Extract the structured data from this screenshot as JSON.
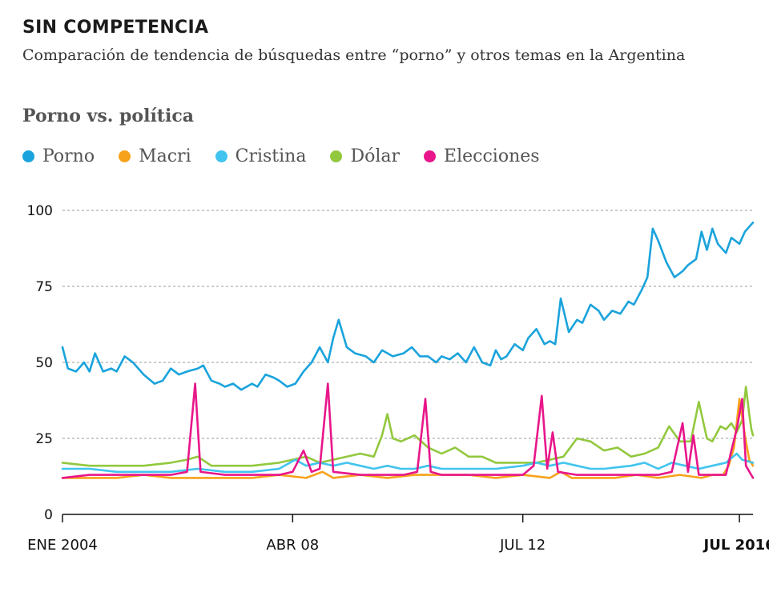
{
  "header": {
    "title": "SIN COMPETENCIA",
    "subtitle": "Comparación de tendencia de búsquedas entre “porno” y otros temas en la Argentina"
  },
  "chart_data": {
    "type": "line",
    "title": "Porno vs. política",
    "ylim": [
      0,
      100
    ],
    "yticks": [
      "0",
      "25",
      "50",
      "75",
      "100"
    ],
    "xtick_labels": [
      {
        "label": "ENE 2004",
        "x": 2004.0,
        "bold": false
      },
      {
        "label": "ABR 08",
        "x": 2008.25,
        "bold": false
      },
      {
        "label": "JUL 12",
        "x": 2012.5,
        "bold": false
      },
      {
        "label": "JUL 2016",
        "x": 2016.5,
        "bold": true
      }
    ],
    "xlim": [
      2004.0,
      2016.75
    ],
    "grid": "horizontal-dashed",
    "legend_position": "top-left",
    "series": [
      {
        "name": "Porno",
        "color": "#1aa3dc",
        "points": [
          [
            2004.0,
            55
          ],
          [
            2004.1,
            48
          ],
          [
            2004.25,
            47
          ],
          [
            2004.4,
            50
          ],
          [
            2004.5,
            47
          ],
          [
            2004.6,
            53
          ],
          [
            2004.75,
            47
          ],
          [
            2004.9,
            48
          ],
          [
            2005.0,
            47
          ],
          [
            2005.15,
            52
          ],
          [
            2005.3,
            50
          ],
          [
            2005.5,
            46
          ],
          [
            2005.7,
            43
          ],
          [
            2005.85,
            44
          ],
          [
            2006.0,
            48
          ],
          [
            2006.15,
            46
          ],
          [
            2006.3,
            47
          ],
          [
            2006.5,
            48
          ],
          [
            2006.6,
            49
          ],
          [
            2006.75,
            44
          ],
          [
            2006.9,
            43
          ],
          [
            2007.0,
            42
          ],
          [
            2007.15,
            43
          ],
          [
            2007.3,
            41
          ],
          [
            2007.5,
            43
          ],
          [
            2007.6,
            42
          ],
          [
            2007.75,
            46
          ],
          [
            2007.9,
            45
          ],
          [
            2008.0,
            44
          ],
          [
            2008.15,
            42
          ],
          [
            2008.3,
            43
          ],
          [
            2008.45,
            47
          ],
          [
            2008.6,
            50
          ],
          [
            2008.75,
            55
          ],
          [
            2008.9,
            50
          ],
          [
            2009.0,
            58
          ],
          [
            2009.1,
            64
          ],
          [
            2009.25,
            55
          ],
          [
            2009.4,
            53
          ],
          [
            2009.6,
            52
          ],
          [
            2009.75,
            50
          ],
          [
            2009.9,
            54
          ],
          [
            2010.1,
            52
          ],
          [
            2010.3,
            53
          ],
          [
            2010.45,
            55
          ],
          [
            2010.6,
            52
          ],
          [
            2010.75,
            52
          ],
          [
            2010.9,
            50
          ],
          [
            2011.0,
            52
          ],
          [
            2011.15,
            51
          ],
          [
            2011.3,
            53
          ],
          [
            2011.45,
            50
          ],
          [
            2011.6,
            55
          ],
          [
            2011.75,
            50
          ],
          [
            2011.9,
            49
          ],
          [
            2012.0,
            54
          ],
          [
            2012.1,
            51
          ],
          [
            2012.2,
            52
          ],
          [
            2012.35,
            56
          ],
          [
            2012.5,
            54
          ],
          [
            2012.6,
            58
          ],
          [
            2012.75,
            61
          ],
          [
            2012.9,
            56
          ],
          [
            2013.0,
            57
          ],
          [
            2013.1,
            56
          ],
          [
            2013.2,
            71
          ],
          [
            2013.35,
            60
          ],
          [
            2013.5,
            64
          ],
          [
            2013.6,
            63
          ],
          [
            2013.75,
            69
          ],
          [
            2013.9,
            67
          ],
          [
            2014.0,
            64
          ],
          [
            2014.15,
            67
          ],
          [
            2014.3,
            66
          ],
          [
            2014.45,
            70
          ],
          [
            2014.55,
            69
          ],
          [
            2014.7,
            74
          ],
          [
            2014.8,
            78
          ],
          [
            2014.9,
            94
          ],
          [
            2015.0,
            90
          ],
          [
            2015.15,
            83
          ],
          [
            2015.3,
            78
          ],
          [
            2015.45,
            80
          ],
          [
            2015.55,
            82
          ],
          [
            2015.7,
            84
          ],
          [
            2015.8,
            93
          ],
          [
            2015.9,
            87
          ],
          [
            2016.0,
            94
          ],
          [
            2016.1,
            89
          ],
          [
            2016.25,
            86
          ],
          [
            2016.35,
            91
          ],
          [
            2016.5,
            89
          ],
          [
            2016.6,
            93
          ],
          [
            2016.75,
            96
          ]
        ]
      },
      {
        "name": "Macri",
        "color": "#f7a21b",
        "points": [
          [
            2004.0,
            12
          ],
          [
            2004.5,
            12
          ],
          [
            2005.0,
            12
          ],
          [
            2005.5,
            13
          ],
          [
            2006.0,
            12
          ],
          [
            2006.5,
            12
          ],
          [
            2007.0,
            12
          ],
          [
            2007.5,
            12
          ],
          [
            2008.0,
            13
          ],
          [
            2008.5,
            12
          ],
          [
            2008.8,
            14
          ],
          [
            2009.0,
            12
          ],
          [
            2009.5,
            13
          ],
          [
            2010.0,
            12
          ],
          [
            2010.5,
            13
          ],
          [
            2011.0,
            13
          ],
          [
            2011.5,
            13
          ],
          [
            2012.0,
            12
          ],
          [
            2012.5,
            13
          ],
          [
            2013.0,
            12
          ],
          [
            2013.2,
            14
          ],
          [
            2013.4,
            12
          ],
          [
            2013.8,
            12
          ],
          [
            2014.2,
            12
          ],
          [
            2014.6,
            13
          ],
          [
            2015.0,
            12
          ],
          [
            2015.4,
            13
          ],
          [
            2015.8,
            12
          ],
          [
            2016.0,
            13
          ],
          [
            2016.2,
            13
          ],
          [
            2016.3,
            16
          ],
          [
            2016.4,
            22
          ],
          [
            2016.5,
            38
          ],
          [
            2016.6,
            26
          ],
          [
            2016.68,
            18
          ],
          [
            2016.75,
            16
          ]
        ]
      },
      {
        "name": "Cristina",
        "color": "#41c4ef",
        "points": [
          [
            2004.0,
            15
          ],
          [
            2004.5,
            15
          ],
          [
            2005.0,
            14
          ],
          [
            2005.5,
            14
          ],
          [
            2006.0,
            14
          ],
          [
            2006.5,
            15
          ],
          [
            2007.0,
            14
          ],
          [
            2007.5,
            14
          ],
          [
            2008.0,
            15
          ],
          [
            2008.3,
            18
          ],
          [
            2008.5,
            16
          ],
          [
            2008.75,
            17
          ],
          [
            2009.0,
            16
          ],
          [
            2009.25,
            17
          ],
          [
            2009.5,
            16
          ],
          [
            2009.75,
            15
          ],
          [
            2010.0,
            16
          ],
          [
            2010.25,
            15
          ],
          [
            2010.5,
            15
          ],
          [
            2010.75,
            16
          ],
          [
            2011.0,
            15
          ],
          [
            2011.5,
            15
          ],
          [
            2012.0,
            15
          ],
          [
            2012.5,
            16
          ],
          [
            2012.75,
            17
          ],
          [
            2013.0,
            16
          ],
          [
            2013.25,
            17
          ],
          [
            2013.5,
            16
          ],
          [
            2013.75,
            15
          ],
          [
            2014.0,
            15
          ],
          [
            2014.5,
            16
          ],
          [
            2014.75,
            17
          ],
          [
            2015.0,
            15
          ],
          [
            2015.25,
            17
          ],
          [
            2015.5,
            16
          ],
          [
            2015.75,
            15
          ],
          [
            2016.0,
            16
          ],
          [
            2016.25,
            17
          ],
          [
            2016.45,
            20
          ],
          [
            2016.55,
            18
          ],
          [
            2016.75,
            17
          ]
        ]
      },
      {
        "name": "Dólar",
        "color": "#92c83e",
        "points": [
          [
            2004.0,
            17
          ],
          [
            2004.5,
            16
          ],
          [
            2005.0,
            16
          ],
          [
            2005.5,
            16
          ],
          [
            2006.0,
            17
          ],
          [
            2006.3,
            18
          ],
          [
            2006.5,
            19
          ],
          [
            2006.75,
            16
          ],
          [
            2007.0,
            16
          ],
          [
            2007.5,
            16
          ],
          [
            2008.0,
            17
          ],
          [
            2008.25,
            18
          ],
          [
            2008.5,
            19
          ],
          [
            2008.75,
            17
          ],
          [
            2009.0,
            18
          ],
          [
            2009.5,
            20
          ],
          [
            2009.75,
            19
          ],
          [
            2009.9,
            26
          ],
          [
            2010.0,
            33
          ],
          [
            2010.1,
            25
          ],
          [
            2010.25,
            24
          ],
          [
            2010.5,
            26
          ],
          [
            2010.75,
            22
          ],
          [
            2011.0,
            20
          ],
          [
            2011.25,
            22
          ],
          [
            2011.5,
            19
          ],
          [
            2011.75,
            19
          ],
          [
            2012.0,
            17
          ],
          [
            2012.5,
            17
          ],
          [
            2012.75,
            17
          ],
          [
            2013.0,
            18
          ],
          [
            2013.25,
            19
          ],
          [
            2013.5,
            25
          ],
          [
            2013.75,
            24
          ],
          [
            2014.0,
            21
          ],
          [
            2014.25,
            22
          ],
          [
            2014.5,
            19
          ],
          [
            2014.75,
            20
          ],
          [
            2015.0,
            22
          ],
          [
            2015.2,
            29
          ],
          [
            2015.4,
            24
          ],
          [
            2015.6,
            24
          ],
          [
            2015.75,
            37
          ],
          [
            2015.9,
            25
          ],
          [
            2016.0,
            24
          ],
          [
            2016.15,
            29
          ],
          [
            2016.25,
            28
          ],
          [
            2016.35,
            30
          ],
          [
            2016.45,
            27
          ],
          [
            2016.55,
            31
          ],
          [
            2016.62,
            42
          ],
          [
            2016.68,
            33
          ],
          [
            2016.72,
            28
          ],
          [
            2016.75,
            26
          ]
        ]
      },
      {
        "name": "Elecciones",
        "color": "#e8168a",
        "points": [
          [
            2004.0,
            12
          ],
          [
            2004.5,
            13
          ],
          [
            2005.0,
            13
          ],
          [
            2005.5,
            13
          ],
          [
            2006.0,
            13
          ],
          [
            2006.3,
            14
          ],
          [
            2006.45,
            43
          ],
          [
            2006.55,
            14
          ],
          [
            2007.0,
            13
          ],
          [
            2007.5,
            13
          ],
          [
            2008.0,
            13
          ],
          [
            2008.25,
            14
          ],
          [
            2008.45,
            21
          ],
          [
            2008.6,
            14
          ],
          [
            2008.75,
            15
          ],
          [
            2008.9,
            43
          ],
          [
            2009.0,
            14
          ],
          [
            2009.5,
            13
          ],
          [
            2010.0,
            13
          ],
          [
            2010.3,
            13
          ],
          [
            2010.55,
            14
          ],
          [
            2010.7,
            38
          ],
          [
            2010.8,
            14
          ],
          [
            2011.0,
            13
          ],
          [
            2011.5,
            13
          ],
          [
            2012.0,
            13
          ],
          [
            2012.5,
            13
          ],
          [
            2012.7,
            16
          ],
          [
            2012.85,
            39
          ],
          [
            2012.95,
            15
          ],
          [
            2013.05,
            27
          ],
          [
            2013.15,
            14
          ],
          [
            2013.5,
            13
          ],
          [
            2014.0,
            13
          ],
          [
            2014.5,
            13
          ],
          [
            2015.0,
            13
          ],
          [
            2015.25,
            14
          ],
          [
            2015.45,
            30
          ],
          [
            2015.55,
            14
          ],
          [
            2015.65,
            26
          ],
          [
            2015.75,
            13
          ],
          [
            2016.0,
            13
          ],
          [
            2016.25,
            13
          ],
          [
            2016.35,
            21
          ],
          [
            2016.45,
            28
          ],
          [
            2016.55,
            38
          ],
          [
            2016.62,
            16
          ],
          [
            2016.75,
            12
          ]
        ]
      }
    ]
  }
}
